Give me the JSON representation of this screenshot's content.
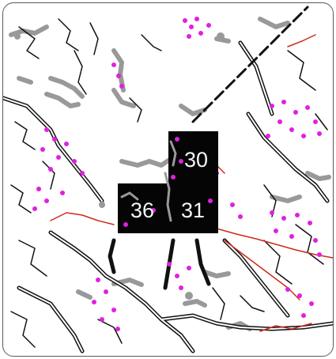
{
  "map": {
    "tiles": [
      {
        "id": "30",
        "label": "30"
      },
      {
        "id": "31",
        "label": "31"
      },
      {
        "id": "36",
        "label": "36"
      }
    ],
    "colors": {
      "tile_fill": "#050505",
      "tile_label": "#f4f4f4",
      "roads": "#111111",
      "road_inner": "#ffffff",
      "rivers_red": "#cc2a1a",
      "poi_magenta": "#e020e0",
      "features_gray": "#999999",
      "border_frame": "#5a5a5a"
    }
  }
}
